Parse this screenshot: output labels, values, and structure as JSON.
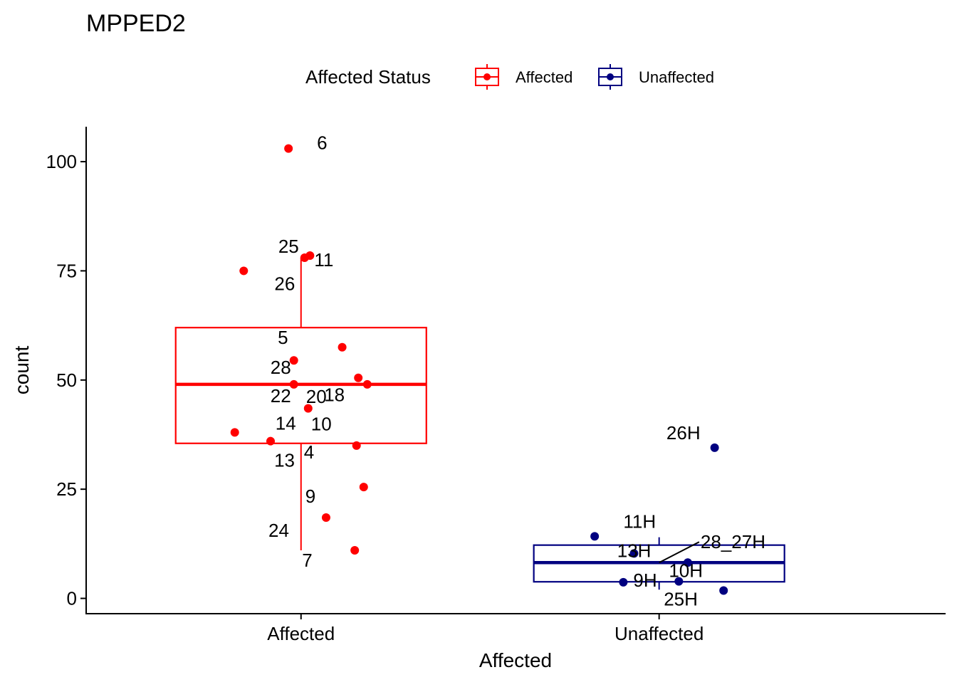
{
  "title": "MPPED2",
  "legend": {
    "title": "Affected Status",
    "items": [
      {
        "label": "Affected",
        "color": "#FF0000"
      },
      {
        "label": "Unaffected",
        "color": "#000080"
      }
    ]
  },
  "chart_data": {
    "type": "box",
    "xlabel": "Affected",
    "ylabel": "count",
    "ylim": [
      -3.5,
      108
    ],
    "yticks": [
      0,
      25,
      50,
      75,
      100
    ],
    "categories": [
      "Affected",
      "Unaffected"
    ],
    "grid": false,
    "legend_position": "top",
    "series": [
      {
        "name": "Affected",
        "color": "#FF0000",
        "box": {
          "whisker_low": 11,
          "q1": 35.5,
          "median": 49,
          "q3": 62,
          "whisker_high": 78
        },
        "points": [
          {
            "label": "6",
            "x": -0.035,
            "y": 103
          },
          {
            "label": "25",
            "x": 0.01,
            "y": 78
          },
          {
            "label": "11",
            "x": 0.025,
            "y": 78.5
          },
          {
            "label": "26",
            "x": -0.16,
            "y": 75
          },
          {
            "label": "5",
            "x": 0.115,
            "y": 57.5
          },
          {
            "label": "28",
            "x": -0.02,
            "y": 54.5
          },
          {
            "label": "18",
            "x": 0.16,
            "y": 50.5
          },
          {
            "label": "22",
            "x": -0.02,
            "y": 49
          },
          {
            "label": "20",
            "x": 0.185,
            "y": 49
          },
          {
            "label": "10",
            "x": 0.02,
            "y": 43.5
          },
          {
            "label": "14",
            "x": -0.185,
            "y": 38
          },
          {
            "label": "13",
            "x": -0.085,
            "y": 36
          },
          {
            "label": "4",
            "x": 0.155,
            "y": 35
          },
          {
            "label": "9",
            "x": 0.175,
            "y": 25.5
          },
          {
            "label": "24",
            "x": 0.07,
            "y": 18.5
          },
          {
            "label": "7",
            "x": 0.15,
            "y": 11
          }
        ]
      },
      {
        "name": "Unaffected",
        "color": "#000080",
        "box": {
          "whisker_low": 2,
          "q1": 3.8,
          "median": 8.2,
          "q3": 12.2,
          "whisker_high": 14
        },
        "points": [
          {
            "label": "26H",
            "x": 0.155,
            "y": 34.5
          },
          {
            "label": "11H",
            "x": -0.18,
            "y": 14.2
          },
          {
            "label": "13H",
            "x": -0.07,
            "y": 10.3
          },
          {
            "label": "28_27H",
            "x": 0.08,
            "y": 8.2
          },
          {
            "label": "10H",
            "x": 0.055,
            "y": 3.9
          },
          {
            "label": "9H",
            "x": -0.1,
            "y": 3.7
          },
          {
            "label": "25H",
            "x": 0.18,
            "y": 1.8
          }
        ]
      }
    ]
  }
}
